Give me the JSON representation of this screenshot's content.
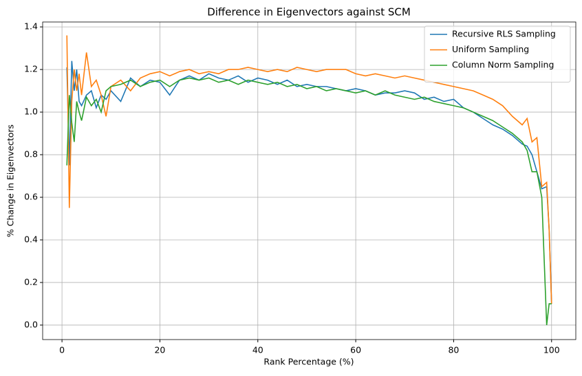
{
  "chart_data": {
    "type": "line",
    "title": "Difference in Eigenvectors against SCM",
    "x_label": "Rank Percentage (%)",
    "y_label": "% Change in Eigenvectors",
    "x": [
      1,
      1.5,
      2,
      2.5,
      3,
      3.5,
      4,
      5,
      6,
      7,
      8,
      9,
      10,
      12,
      14,
      16,
      18,
      20,
      22,
      24,
      26,
      28,
      30,
      32,
      34,
      36,
      38,
      40,
      42,
      44,
      46,
      48,
      50,
      52,
      54,
      56,
      58,
      60,
      62,
      64,
      66,
      68,
      70,
      72,
      74,
      76,
      78,
      80,
      82,
      84,
      86,
      88,
      90,
      92,
      94,
      95,
      96,
      97,
      98,
      99,
      99.5,
      100
    ],
    "series": [
      {
        "name": "Recursive RLS Sampling",
        "color": "#1f77b4",
        "values": [
          1.21,
          0.75,
          1.24,
          1.1,
          1.2,
          1.05,
          1.03,
          1.08,
          1.1,
          1.02,
          1.08,
          1.06,
          1.1,
          1.05,
          1.16,
          1.12,
          1.15,
          1.14,
          1.08,
          1.15,
          1.17,
          1.15,
          1.18,
          1.16,
          1.15,
          1.17,
          1.14,
          1.16,
          1.15,
          1.13,
          1.15,
          1.12,
          1.13,
          1.12,
          1.12,
          1.11,
          1.1,
          1.11,
          1.1,
          1.08,
          1.09,
          1.09,
          1.1,
          1.09,
          1.06,
          1.07,
          1.05,
          1.06,
          1.02,
          1.0,
          0.97,
          0.94,
          0.92,
          0.89,
          0.85,
          0.84,
          0.8,
          0.72,
          0.64,
          0.65,
          0.45,
          0.1
        ]
      },
      {
        "name": "Uniform Sampling",
        "color": "#ff7f0e",
        "values": [
          1.36,
          0.55,
          1.05,
          1.2,
          1.1,
          1.18,
          1.08,
          1.28,
          1.12,
          1.15,
          1.08,
          0.98,
          1.12,
          1.15,
          1.1,
          1.16,
          1.18,
          1.19,
          1.17,
          1.19,
          1.2,
          1.18,
          1.19,
          1.18,
          1.2,
          1.2,
          1.21,
          1.2,
          1.19,
          1.2,
          1.19,
          1.21,
          1.2,
          1.19,
          1.2,
          1.2,
          1.2,
          1.18,
          1.17,
          1.18,
          1.17,
          1.16,
          1.17,
          1.16,
          1.15,
          1.14,
          1.13,
          1.12,
          1.11,
          1.1,
          1.08,
          1.06,
          1.03,
          0.98,
          0.94,
          0.97,
          0.86,
          0.88,
          0.65,
          0.67,
          0.45,
          0.1
        ]
      },
      {
        "name": "Column Norm Sampling",
        "color": "#2ca02c",
        "values": [
          0.75,
          1.08,
          0.95,
          0.86,
          1.05,
          1.0,
          0.96,
          1.07,
          1.03,
          1.06,
          1.0,
          1.1,
          1.12,
          1.13,
          1.15,
          1.12,
          1.14,
          1.15,
          1.12,
          1.15,
          1.16,
          1.15,
          1.16,
          1.14,
          1.15,
          1.13,
          1.15,
          1.14,
          1.13,
          1.14,
          1.12,
          1.13,
          1.11,
          1.12,
          1.1,
          1.11,
          1.1,
          1.09,
          1.1,
          1.08,
          1.1,
          1.08,
          1.07,
          1.06,
          1.07,
          1.05,
          1.04,
          1.03,
          1.02,
          1.0,
          0.98,
          0.96,
          0.93,
          0.9,
          0.86,
          0.82,
          0.72,
          0.72,
          0.6,
          0.0,
          0.1,
          0.1
        ]
      }
    ],
    "xlim": [
      -3.95,
      104.95
    ],
    "ylim": [
      -0.068,
      1.423
    ],
    "xticks": [
      0,
      20,
      40,
      60,
      80,
      100
    ],
    "yticks": [
      {
        "value": 0,
        "label": "0.0"
      },
      0.2,
      0.4,
      0.6,
      0.8,
      {
        "value": 1,
        "label": "1.0"
      },
      1.2,
      1.4
    ],
    "grid": true,
    "legend": "upper right"
  }
}
